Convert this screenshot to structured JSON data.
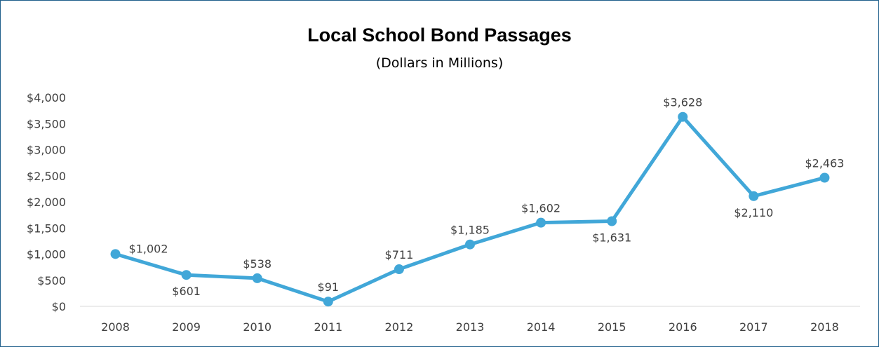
{
  "chart_data": {
    "type": "line",
    "title": "Local School Bond Passages",
    "subtitle": "(Dollars in Millions)",
    "categories": [
      "2008",
      "2009",
      "2010",
      "2011",
      "2012",
      "2013",
      "2014",
      "2015",
      "2016",
      "2017",
      "2018"
    ],
    "values": [
      1002,
      601,
      538,
      91,
      711,
      1185,
      1602,
      1631,
      3628,
      2110,
      2463
    ],
    "data_labels": [
      "$1,002",
      "$601",
      "$538",
      "$91",
      "$711",
      "$1,185",
      "$1,602",
      "$1,631",
      "$3,628",
      "$2,110",
      "$2,463"
    ],
    "data_label_positions": [
      "right",
      "below",
      "above",
      "above",
      "above",
      "above",
      "above",
      "below",
      "above",
      "below",
      "above"
    ],
    "ylim": [
      0,
      4000
    ],
    "yticks": [
      0,
      500,
      1000,
      1500,
      2000,
      2500,
      3000,
      3500,
      4000
    ],
    "ytick_labels": [
      "$0",
      "$500",
      "$1,000",
      "$1,500",
      "$2,000",
      "$2,500",
      "$3,000",
      "$3,500",
      "$4,000"
    ],
    "xlabel": "",
    "ylabel": "",
    "grid": false,
    "legend": "none",
    "colors": {
      "line": "#41a7d8",
      "marker": "#41a7d8",
      "axis": "#d9d9d9",
      "frame": "#1f5f8b"
    }
  }
}
